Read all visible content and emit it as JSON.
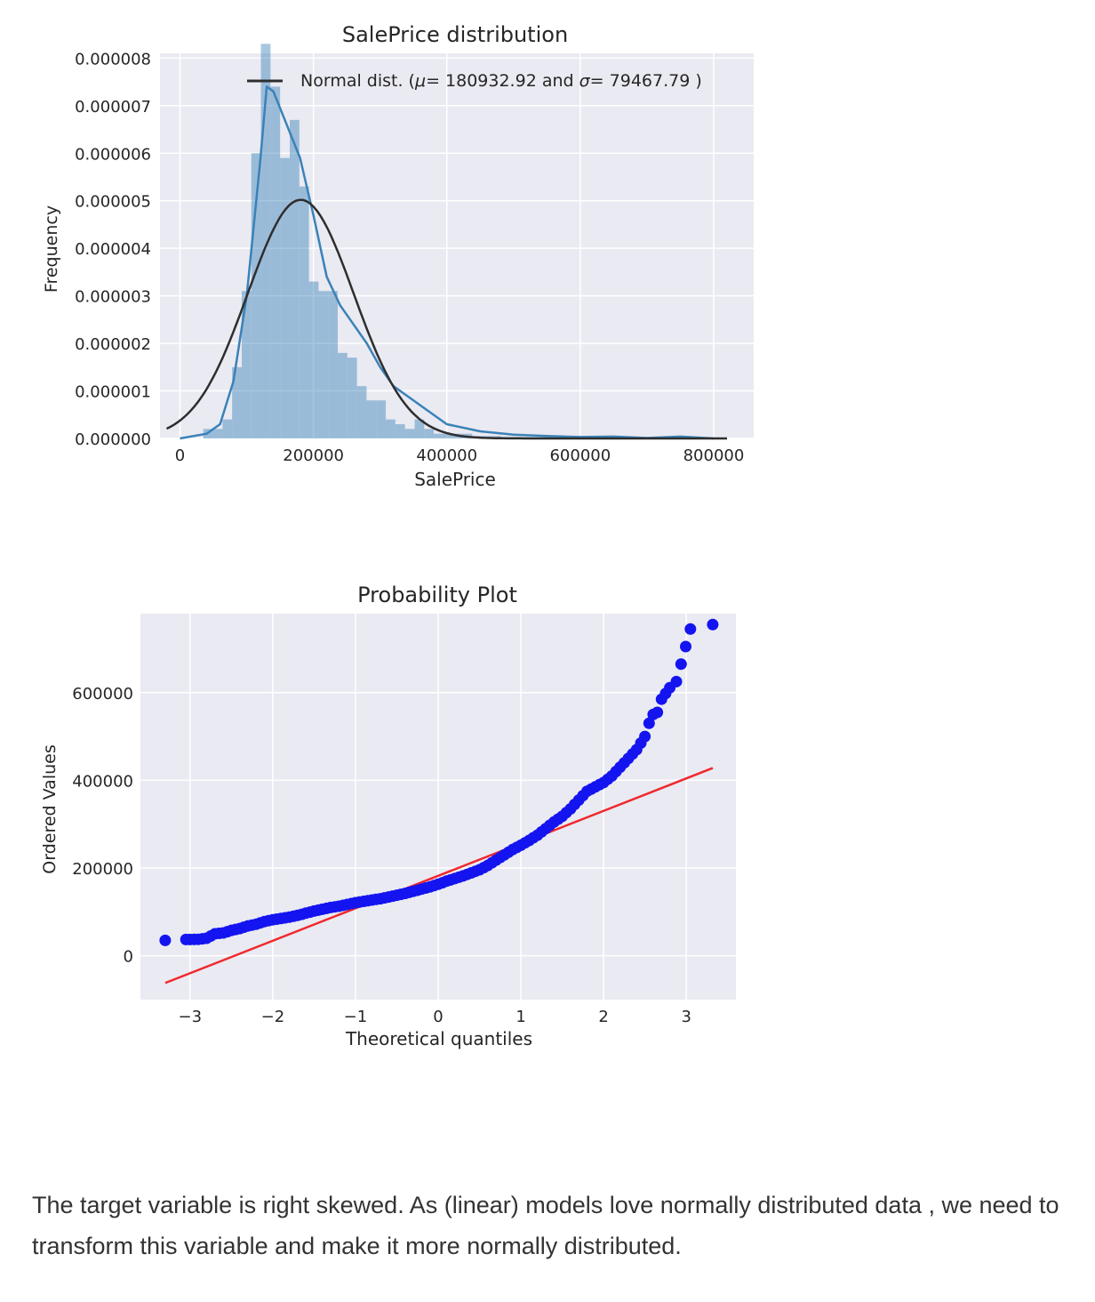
{
  "chart_data": [
    {
      "type": "histogram",
      "title": "SalePrice distribution",
      "xlabel": "SalePrice",
      "ylabel": "Frequency",
      "xlim": [
        -30000,
        860000
      ],
      "ylim": [
        0,
        8.1e-06
      ],
      "xticks": [
        0,
        200000,
        400000,
        600000,
        800000
      ],
      "xtick_labels": [
        "0",
        "200000",
        "400000",
        "600000",
        "800000"
      ],
      "yticks": [
        0,
        1e-06,
        2e-06,
        3e-06,
        4e-06,
        5e-06,
        6e-06,
        7e-06,
        8e-06
      ],
      "ytick_labels": [
        "0.000000",
        "0.000001",
        "0.000002",
        "0.000003",
        "0.000004",
        "0.000005",
        "0.000006",
        "0.000007",
        "0.000008"
      ],
      "grid": true,
      "legend_position": "top",
      "legend": {
        "label_prefix": "Normal dist. (",
        "mu_symbol": "μ",
        "eq": "=",
        "mu_value": "180932.92",
        "and_text": "and",
        "sigma_symbol": "σ",
        "sigma_value": "79467.79",
        "label_suffix": ")"
      },
      "bins": {
        "edges": [
          34900,
          49300,
          63700,
          78100,
          92500,
          106900,
          121300,
          135700,
          150100,
          164500,
          178900,
          193300,
          207700,
          222100,
          236500,
          250900,
          265300,
          279700,
          294100,
          308500,
          322900,
          337300,
          351700,
          366100,
          380500,
          394900,
          409300,
          423700,
          438100,
          452500,
          466900,
          481300,
          495700,
          510100,
          524500,
          538900,
          553300,
          567700,
          582100,
          596500,
          610900,
          625300,
          639700,
          654100,
          668500,
          682900,
          697300,
          711700,
          726100,
          740500,
          754900
        ],
        "density": [
          2e-07,
          2e-07,
          4e-07,
          1.5e-06,
          3.1e-06,
          6e-06,
          8.3e-06,
          7.4e-06,
          5.9e-06,
          6.7e-06,
          5.3e-06,
          3.3e-06,
          3.1e-06,
          3.1e-06,
          1.8e-06,
          1.7e-06,
          1.1e-06,
          8e-07,
          8e-07,
          4e-07,
          3e-07,
          2e-07,
          4e-07,
          2e-07,
          1e-07,
          1e-07,
          1e-07,
          1e-07,
          5e-08,
          5e-08,
          5e-08,
          3e-08,
          3e-08,
          3e-08,
          3e-08,
          3e-08,
          3e-08,
          3e-08,
          3e-08,
          3e-08,
          3e-08,
          3e-08,
          3e-08,
          3e-08,
          3e-08,
          3e-08,
          3e-08,
          3e-08,
          3e-08,
          3e-08
        ]
      },
      "series": [
        {
          "kind": "kde",
          "color": "#3a82b8",
          "x": [
            0,
            40000,
            60000,
            80000,
            100000,
            120000,
            130000,
            140000,
            160000,
            180000,
            200000,
            220000,
            240000,
            260000,
            280000,
            300000,
            320000,
            340000,
            360000,
            400000,
            450000,
            500000,
            550000,
            600000,
            650000,
            700000,
            750000,
            800000
          ],
          "y": [
            0,
            1e-07,
            3e-07,
            1.2e-06,
            3e-06,
            5.8e-06,
            7.4e-06,
            7.3e-06,
            6.6e-06,
            5.9e-06,
            4.7e-06,
            3.4e-06,
            2.8e-06,
            2.4e-06,
            2e-06,
            1.5e-06,
            1.1e-06,
            9e-07,
            7e-07,
            3e-07,
            1.5e-07,
            8e-08,
            5e-08,
            3e-08,
            4e-08,
            1e-08,
            4e-08,
            0
          ]
        },
        {
          "kind": "normal_fit",
          "color": "#2e2e2e",
          "mu": 180932.92,
          "sigma": 79467.79
        }
      ]
    },
    {
      "type": "scatter",
      "title": "Probability Plot",
      "xlabel": "Theoretical quantiles",
      "ylabel": "Ordered Values",
      "xlim": [
        -3.6,
        3.6
      ],
      "ylim": [
        -100000,
        780000
      ],
      "xticks": [
        -3,
        -2,
        -1,
        0,
        1,
        2,
        3
      ],
      "xtick_labels": [
        "−3",
        "−2",
        "−1",
        "0",
        "1",
        "2",
        "3"
      ],
      "yticks": [
        0,
        200000,
        400000,
        600000
      ],
      "ytick_labels": [
        "0",
        "200000",
        "400000",
        "600000"
      ],
      "grid": true,
      "series": [
        {
          "kind": "points",
          "color": "#1414f0",
          "x": [
            -3.3,
            -3.05,
            -2.9,
            -2.8,
            -2.7,
            -2.6,
            -2.5,
            -2.4,
            -2.3,
            -2.2,
            -2.1,
            -2.0,
            -1.9,
            -1.8,
            -1.7,
            -1.6,
            -1.5,
            -1.4,
            -1.3,
            -1.2,
            -1.1,
            -1.0,
            -0.9,
            -0.8,
            -0.7,
            -0.6,
            -0.5,
            -0.4,
            -0.3,
            -0.2,
            -0.1,
            0.0,
            0.1,
            0.2,
            0.3,
            0.4,
            0.5,
            0.6,
            0.7,
            0.8,
            0.9,
            1.0,
            1.1,
            1.2,
            1.3,
            1.4,
            1.5,
            1.6,
            1.7,
            1.8,
            1.9,
            2.0,
            2.1,
            2.2,
            2.3,
            2.4,
            2.5,
            2.55,
            2.6,
            2.65,
            2.7,
            2.8,
            2.88,
            3.05,
            3.32
          ],
          "y": [
            35000,
            37000,
            37500,
            40000,
            50000,
            52000,
            58000,
            62000,
            68000,
            72000,
            78000,
            82000,
            85000,
            88000,
            92000,
            97000,
            102000,
            106000,
            110000,
            113000,
            117000,
            121000,
            124000,
            127000,
            130000,
            134000,
            138000,
            142000,
            147000,
            152000,
            157000,
            163000,
            170000,
            176000,
            182000,
            189000,
            196000,
            206000,
            218000,
            230000,
            242000,
            252000,
            263000,
            275000,
            290000,
            305000,
            318000,
            335000,
            355000,
            375000,
            385000,
            395000,
            410000,
            430000,
            450000,
            470000,
            500000,
            530000,
            550000,
            555000,
            585000,
            611000,
            625000,
            745000,
            755000
          ]
        },
        {
          "kind": "fit_line",
          "color": "#f0282d",
          "x": [
            -3.3,
            3.32
          ],
          "y": [
            -62000,
            428000
          ]
        }
      ]
    }
  ],
  "caption": "The target variable is right skewed. As (linear) models love normally distributed data , we need to transform this variable and make it more normally distributed."
}
